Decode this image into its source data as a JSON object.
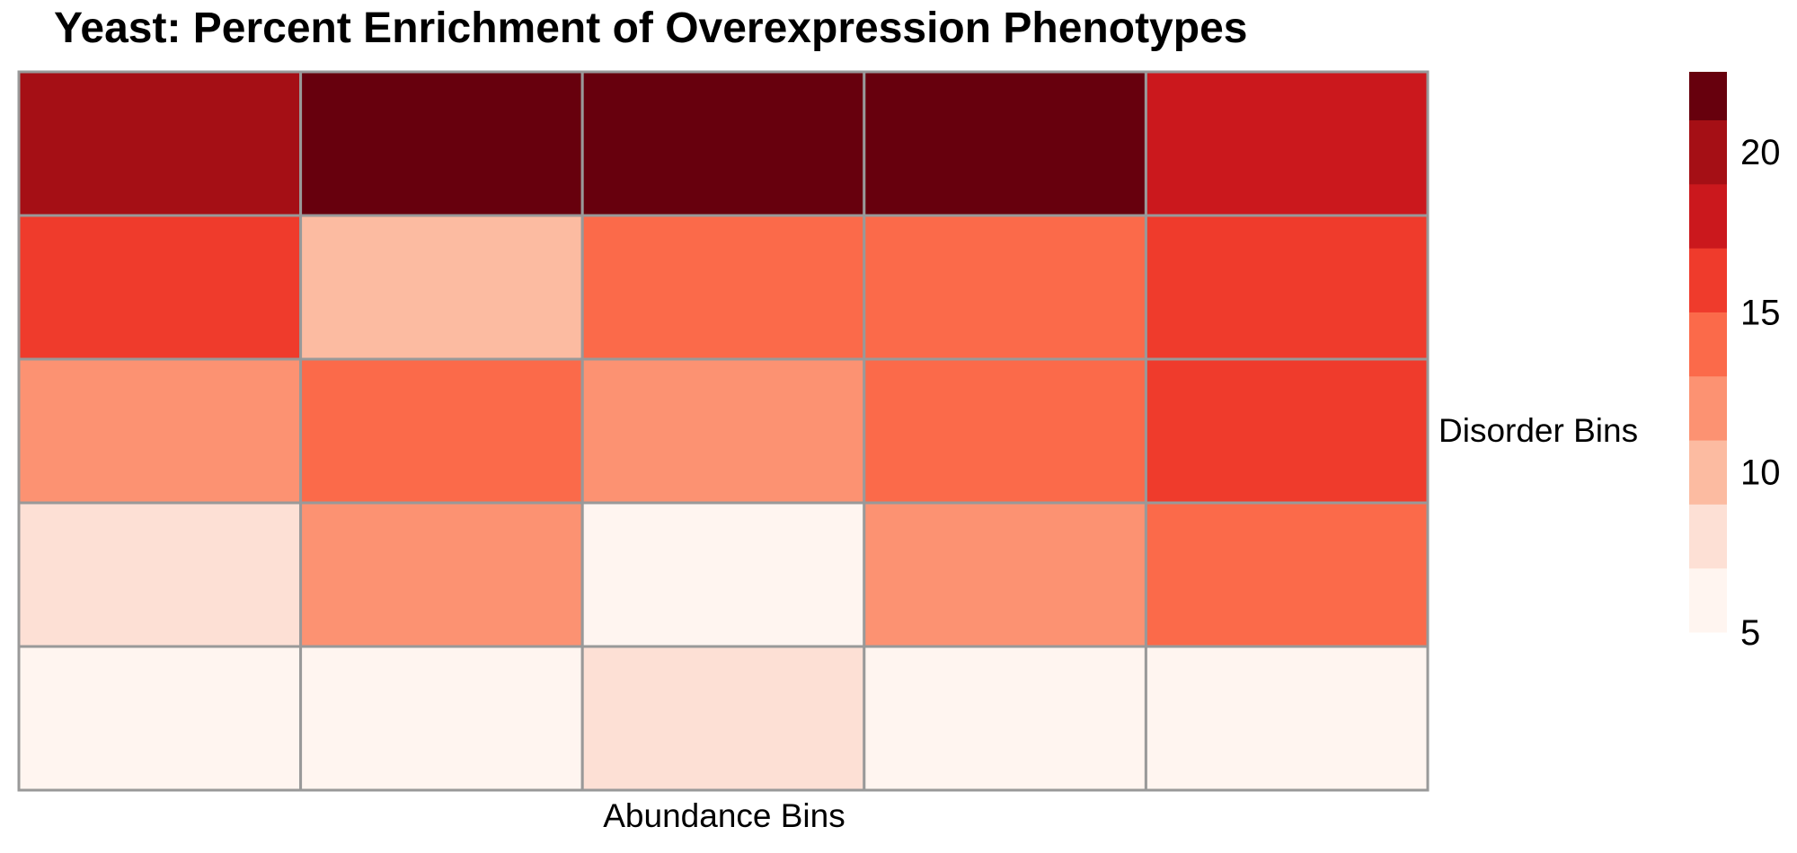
{
  "chart_data": {
    "type": "heatmap",
    "title": "Yeast: Percent Enrichment of Overexpression Phenotypes",
    "xlabel": "Abundance Bins",
    "ylabel": "Disorder Bins",
    "rows": 5,
    "cols": 5,
    "values": [
      [
        20,
        22,
        22,
        22,
        18
      ],
      [
        16,
        10,
        14,
        14,
        16
      ],
      [
        12,
        14,
        12,
        14,
        16
      ],
      [
        8,
        12,
        6,
        12,
        14
      ],
      [
        6,
        6,
        8,
        6,
        6
      ]
    ],
    "color_scale": {
      "min": 5,
      "max": 22.5,
      "bins": [
        {
          "from": 5,
          "to": 7,
          "color": "#fff5f0"
        },
        {
          "from": 7,
          "to": 9,
          "color": "#fde0d5"
        },
        {
          "from": 9,
          "to": 11,
          "color": "#fcbba1"
        },
        {
          "from": 11,
          "to": 13,
          "color": "#fc9272"
        },
        {
          "from": 13,
          "to": 15,
          "color": "#fb6a4a"
        },
        {
          "from": 15,
          "to": 17,
          "color": "#ef3b2c"
        },
        {
          "from": 17,
          "to": 19,
          "color": "#cb181d"
        },
        {
          "from": 19,
          "to": 21,
          "color": "#a50f15"
        },
        {
          "from": 21,
          "to": 22.5,
          "color": "#67000d"
        }
      ],
      "ticks": [
        5,
        10,
        15,
        20
      ],
      "tick_labels": [
        "5",
        "10",
        "15",
        "20"
      ]
    },
    "grid_line_color": "#999999",
    "legend": "right"
  }
}
